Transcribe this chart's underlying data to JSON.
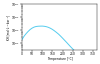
{
  "xlabel": "Temperature [°C]",
  "ylabel": "KH [mol·L⁻¹·bar⁻¹]",
  "xlim": [
    0,
    370
  ],
  "ylim_log": [
    -4.5,
    -1.0
  ],
  "xticks": [
    0,
    50,
    100,
    150,
    200,
    250,
    300,
    350
  ],
  "yticks_log": [
    -4,
    -3,
    -2,
    -1
  ],
  "line_color": "#55ccee",
  "bg_color": "#ffffff",
  "temp_points": [
    0,
    10,
    20,
    30,
    40,
    50,
    60,
    70,
    80,
    90,
    100,
    110,
    120,
    130,
    140,
    150,
    160,
    170,
    180,
    190,
    200,
    220,
    240,
    260,
    280,
    300,
    320,
    340,
    360
  ],
  "log_kh": [
    -3.7,
    -3.45,
    -3.25,
    -3.08,
    -2.93,
    -2.82,
    -2.74,
    -2.695,
    -2.675,
    -2.668,
    -2.665,
    -2.68,
    -2.71,
    -2.76,
    -2.83,
    -2.92,
    -3.03,
    -3.15,
    -3.28,
    -3.43,
    -3.59,
    -3.92,
    -4.26,
    -4.58,
    -4.88,
    -5.15,
    -5.42,
    -5.68,
    -5.92
  ]
}
